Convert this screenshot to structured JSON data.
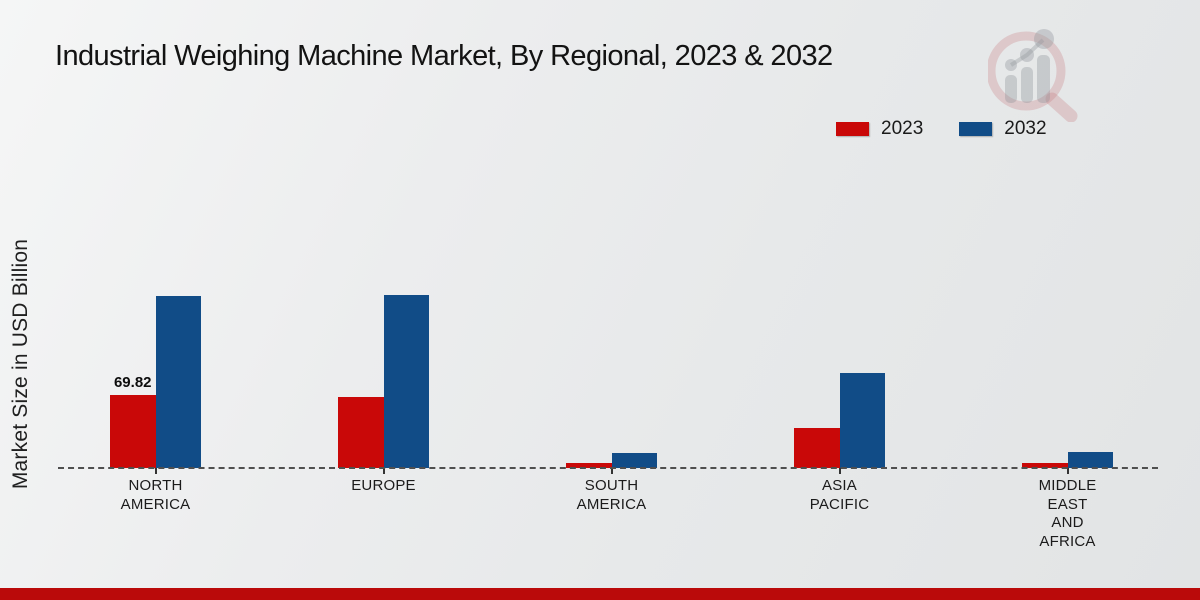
{
  "title": "Industrial Weighing Machine Market, By Regional, 2023 & 2032",
  "y_axis_label": "Market Size in USD Billion",
  "legend": {
    "position": "top-right",
    "items": [
      {
        "label": "2023",
        "color": "#c90808"
      },
      {
        "label": "2032",
        "color": "#114c87"
      }
    ]
  },
  "watermark": {
    "name": "market-research-future-logo"
  },
  "footer": {
    "bar_color": "#ba0a0a"
  },
  "chart_data": {
    "type": "bar",
    "title": "Industrial Weighing Machine Market, By Regional, 2023 & 2032",
    "xlabel": "",
    "ylabel": "Market Size in USD Billion",
    "grid": false,
    "baseline_style": "dashed",
    "legend_position": "top-right",
    "ylim": [
      0,
      185
    ],
    "categories": [
      "NORTH AMERICA",
      "EUROPE",
      "SOUTH AMERICA",
      "ASIA PACIFIC",
      "MIDDLE EAST AND AFRICA"
    ],
    "category_label_lines": [
      [
        "NORTH",
        "AMERICA"
      ],
      [
        "EUROPE"
      ],
      [
        "SOUTH",
        "AMERICA"
      ],
      [
        "ASIA",
        "PACIFIC"
      ],
      [
        "MIDDLE",
        "EAST",
        "AND",
        "AFRICA"
      ]
    ],
    "series": [
      {
        "name": "2023",
        "color": "#c90808",
        "values": [
          69.82,
          67.9,
          4.8,
          38.3,
          4.9
        ]
      },
      {
        "name": "2032",
        "color": "#114c87",
        "values": [
          164.5,
          165.4,
          14.3,
          90.9,
          15.3
        ]
      }
    ],
    "data_labels": [
      {
        "series": "2023",
        "category_index": 0,
        "text": "69.82"
      }
    ]
  }
}
